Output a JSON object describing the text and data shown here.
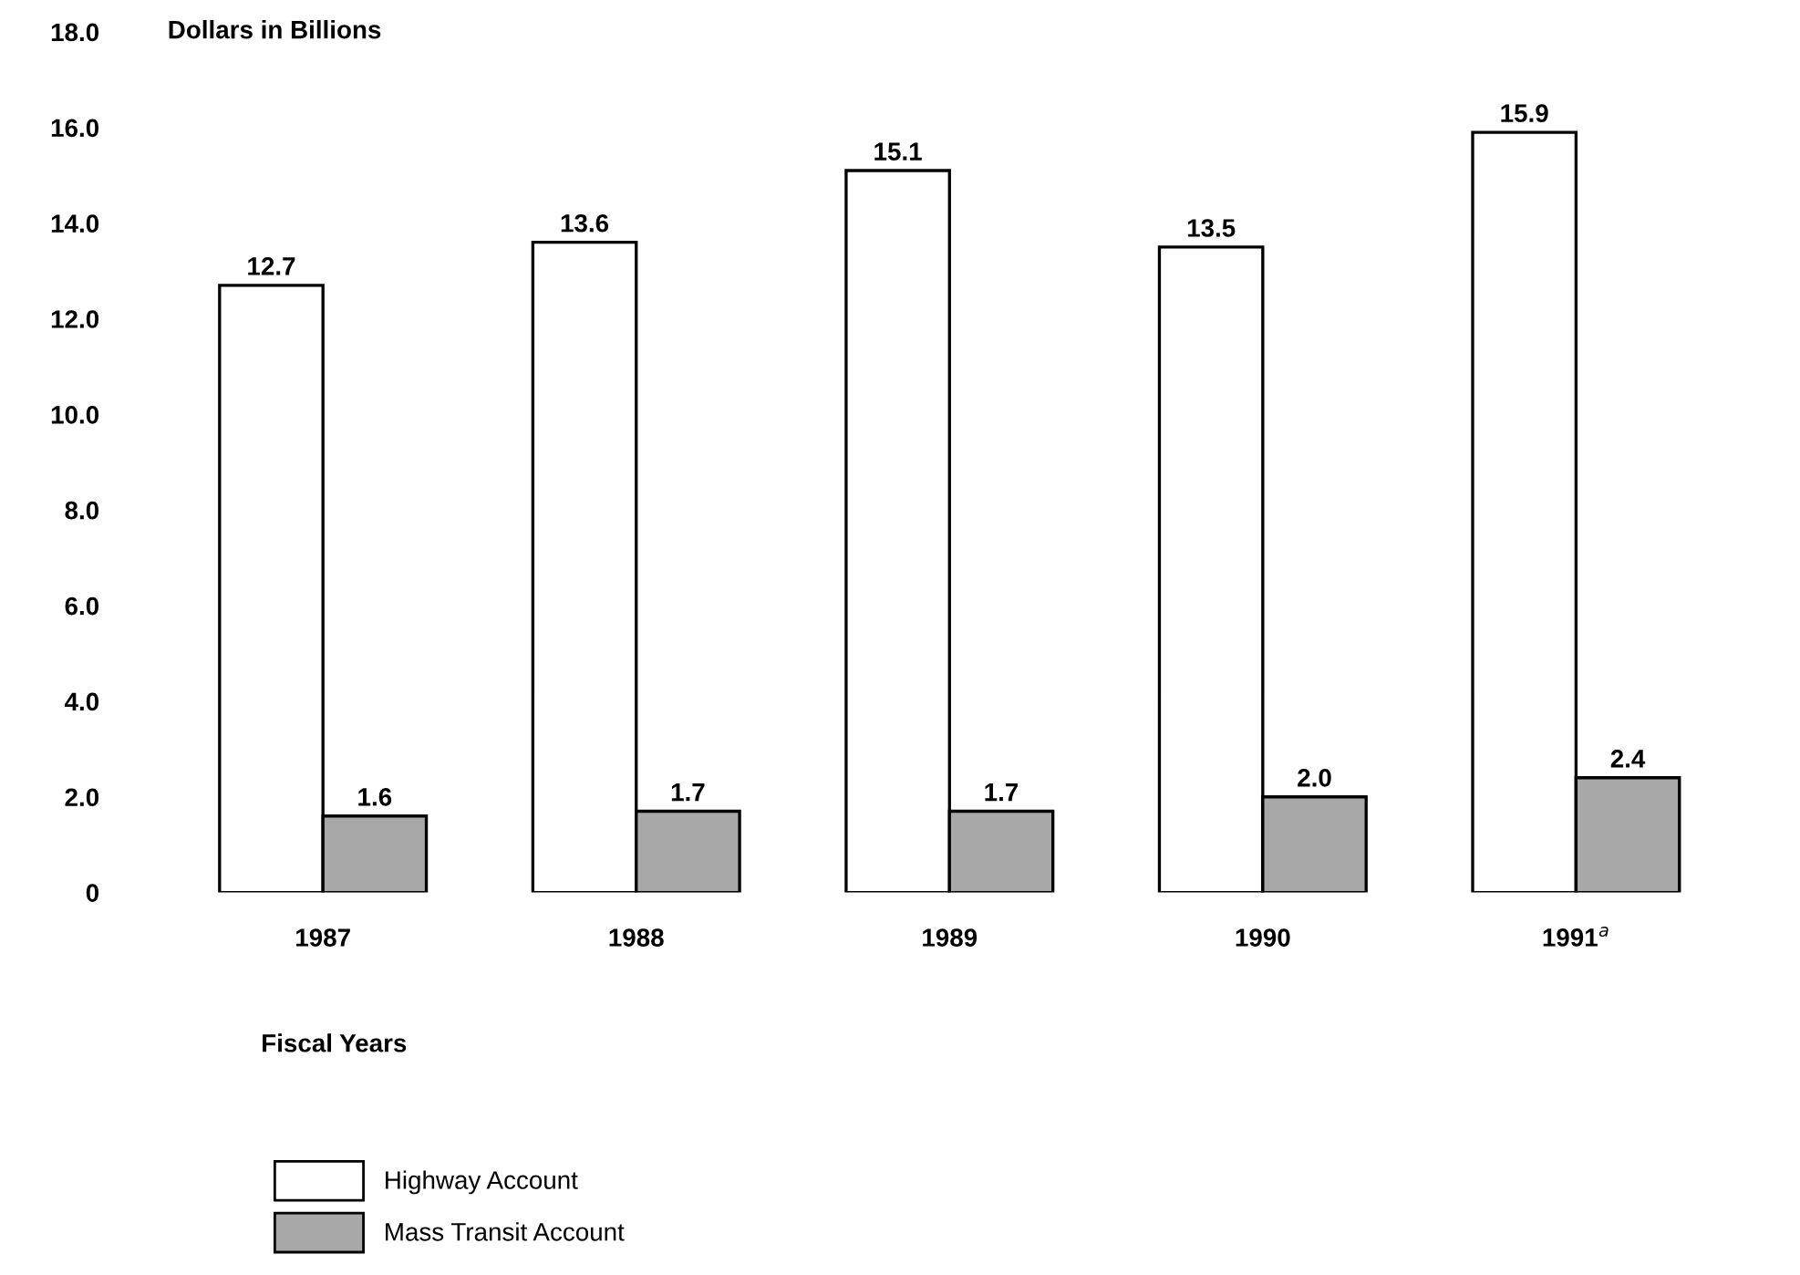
{
  "chart_data": {
    "type": "bar",
    "ylabel": "Dollars in Billions",
    "xlabel": "Fiscal Years",
    "categories": [
      "1987",
      "1988",
      "1989",
      "1990",
      "1991$^{a}$"
    ],
    "series": [
      {
        "name": "Highway Account",
        "color": "#ffffff",
        "values": [
          12.7,
          13.6,
          15.1,
          13.5,
          15.9
        ],
        "value_labels": [
          "12.7",
          "13.6",
          "15.1",
          "13.5",
          "15.9"
        ]
      },
      {
        "name": "Mass Transit Account",
        "color": "#a8a8a8",
        "values": [
          1.6,
          1.7,
          1.7,
          2.0,
          2.4
        ],
        "value_labels": [
          "1.6",
          "1.7",
          "1.7",
          "2.0",
          "2.4"
        ]
      }
    ],
    "ylim": [
      0,
      18
    ],
    "yticks": [
      {
        "value": 0,
        "label": "0"
      },
      {
        "value": 2,
        "label": "2.0"
      },
      {
        "value": 4,
        "label": "4.0"
      },
      {
        "value": 6,
        "label": "6.0"
      },
      {
        "value": 8,
        "label": "8.0"
      },
      {
        "value": 10,
        "label": "10.0"
      },
      {
        "value": 12,
        "label": "12.0"
      },
      {
        "value": 14,
        "label": "14.0"
      },
      {
        "value": 16,
        "label": "16.0"
      },
      {
        "value": 18,
        "label": "18.0"
      }
    ],
    "grid": false,
    "legend": "bottom left"
  }
}
